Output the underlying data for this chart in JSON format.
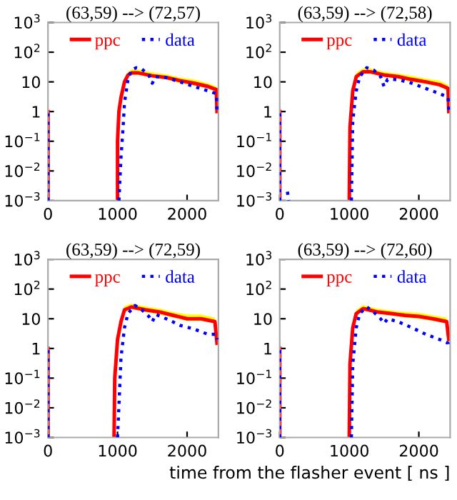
{
  "chart_data": [
    {
      "type": "line",
      "title": "(63,59) --> (72,57)",
      "log": "y",
      "xlim": [
        0,
        2450
      ],
      "ylim": [
        0.001,
        1000
      ],
      "xticks": [
        0,
        1000,
        2000
      ],
      "yticks": [
        {
          "value": 0.001,
          "label": "10$^{−3}$"
        },
        {
          "value": 0.01,
          "label": "10$^{−2}$"
        },
        {
          "value": 0.1,
          "label": "10$^{−1}$"
        },
        1,
        10,
        {
          "value": 100,
          "label": "10$^{2}$"
        },
        {
          "value": 1000,
          "label": "10$^{3}$"
        }
      ],
      "legend": "top",
      "grid": false,
      "series": [
        {
          "name": "ppc",
          "color": "#ff0000",
          "line_style": "solid",
          "x": [
            0,
            0,
            20,
            1000,
            1000,
            1020,
            1050,
            1100,
            1150,
            1200,
            1300,
            1500,
            1700,
            1900,
            2100,
            2300,
            2420,
            2430
          ],
          "values": [
            0.001,
            1,
            null,
            0.001,
            0.1,
            1,
            3,
            10,
            17,
            20,
            20,
            16,
            14,
            11,
            9,
            7,
            5.5,
            1
          ],
          "lower": [
            null,
            null,
            null,
            null,
            null,
            null,
            null,
            8,
            14,
            17,
            17,
            14,
            12,
            9,
            7.5,
            6,
            4.5,
            null
          ],
          "upper": [
            null,
            null,
            null,
            null,
            null,
            null,
            null,
            13,
            22,
            26,
            26,
            21,
            18,
            14,
            12,
            9,
            7,
            null
          ]
        },
        {
          "name": "data",
          "color": "#0000ff",
          "line_style": "dotted",
          "x": [
            0,
            0,
            20,
            1020,
            1050,
            1080,
            1100,
            1150,
            1200,
            1270,
            1350,
            1450,
            1500,
            1550,
            1700,
            1900,
            2100,
            2300,
            2420,
            2430
          ],
          "values": [
            0.001,
            1,
            null,
            0.001,
            0.03,
            0.3,
            2,
            12,
            25,
            30,
            27,
            17,
            9,
            15,
            14,
            10,
            7,
            5,
            4,
            1
          ]
        }
      ]
    },
    {
      "type": "line",
      "title": "(63,59) --> (72,58)",
      "log": "y",
      "xlim": [
        0,
        2450
      ],
      "ylim": [
        0.001,
        1000
      ],
      "xticks": [
        0,
        1000,
        2000
      ],
      "yticks": [
        {
          "value": 0.001,
          "label": "10$^{−3}$"
        },
        {
          "value": 0.01,
          "label": "10$^{−2}$"
        },
        {
          "value": 0.1,
          "label": "10$^{−1}$"
        },
        1,
        10,
        {
          "value": 100,
          "label": "10$^{2}$"
        },
        {
          "value": 1000,
          "label": "10$^{3}$"
        }
      ],
      "legend": "top",
      "grid": false,
      "series": [
        {
          "name": "ppc",
          "color": "#ff0000",
          "line_style": "solid",
          "x": [
            0,
            0,
            20,
            1000,
            1010,
            1050,
            1100,
            1200,
            1300,
            1500,
            1700,
            1900,
            2100,
            2300,
            2420,
            2430
          ],
          "values": [
            0.001,
            1,
            null,
            0.001,
            0.3,
            5,
            15,
            22,
            22,
            17,
            15,
            12,
            10,
            8,
            6,
            1
          ],
          "lower": [
            null,
            null,
            null,
            null,
            null,
            4,
            13,
            19,
            19,
            15,
            13,
            10,
            8.5,
            7,
            5,
            null
          ],
          "upper": [
            null,
            null,
            null,
            null,
            null,
            7,
            20,
            29,
            29,
            22,
            19,
            16,
            13,
            11,
            8,
            null
          ]
        },
        {
          "name": "data",
          "color": "#0000ff",
          "line_style": "dotted",
          "x": [
            0,
            0,
            20,
            110,
            130,
            140,
            1030,
            1050,
            1100,
            1150,
            1250,
            1350,
            1450,
            1500,
            1550,
            1700,
            1900,
            2100,
            2300,
            2420,
            2430
          ],
          "values": [
            0.001,
            1,
            null,
            0.002,
            0.001,
            null,
            0.001,
            0.5,
            5,
            15,
            30,
            25,
            15,
            7,
            12,
            12,
            9,
            6,
            4,
            3,
            1
          ]
        }
      ]
    },
    {
      "type": "line",
      "title": "(63,59) --> (72,59)",
      "log": "y",
      "xlim": [
        0,
        2450
      ],
      "ylim": [
        0.001,
        1000
      ],
      "xticks": [
        0,
        1000,
        2000
      ],
      "yticks": [
        {
          "value": 0.001,
          "label": "10$^{−3}$"
        },
        {
          "value": 0.01,
          "label": "10$^{−2}$"
        },
        {
          "value": 0.1,
          "label": "10$^{−1}$"
        },
        1,
        10,
        {
          "value": 100,
          "label": "10$^{2}$"
        },
        {
          "value": 1000,
          "label": "10$^{3}$"
        }
      ],
      "legend": "top",
      "grid": false,
      "series": [
        {
          "name": "ppc",
          "color": "#ff0000",
          "line_style": "solid",
          "x": [
            0,
            0,
            20,
            950,
            960,
            1000,
            1050,
            1100,
            1200,
            1400,
            1600,
            1800,
            2000,
            2200,
            2400,
            2430
          ],
          "values": [
            0.001,
            1,
            null,
            0.001,
            0.1,
            2,
            8,
            20,
            25,
            20,
            17,
            13,
            10,
            10,
            8,
            1.5
          ],
          "lower": [
            null,
            null,
            null,
            null,
            null,
            null,
            7,
            17,
            21,
            17,
            14,
            11,
            8.5,
            8.5,
            7,
            null
          ],
          "upper": [
            null,
            null,
            null,
            null,
            null,
            null,
            11,
            27,
            32,
            26,
            22,
            17,
            14,
            14,
            11,
            null
          ]
        },
        {
          "name": "data",
          "color": "#0000ff",
          "line_style": "dotted",
          "x": [
            0,
            0,
            20,
            1000,
            1050,
            1100,
            1150,
            1250,
            1350,
            1450,
            1500,
            1550,
            1700,
            1900,
            2100,
            2300,
            2420,
            2430
          ],
          "values": [
            0.001,
            1,
            null,
            0.001,
            0.5,
            5,
            15,
            28,
            20,
            12,
            8,
            14,
            10,
            6,
            4.5,
            3,
            3,
            2
          ]
        }
      ]
    },
    {
      "type": "line",
      "title": "(63,59) --> (72,60)",
      "xlabel": "time from the flasher event [ ns ]",
      "log": "y",
      "xlim": [
        0,
        2450
      ],
      "ylim": [
        0.001,
        1000
      ],
      "xticks": [
        0,
        1000,
        2000
      ],
      "yticks": [
        {
          "value": 0.001,
          "label": "10$^{−3}$"
        },
        {
          "value": 0.01,
          "label": "10$^{−2}$"
        },
        {
          "value": 0.1,
          "label": "10$^{−1}$"
        },
        1,
        10,
        {
          "value": 100,
          "label": "10$^{2}$"
        },
        {
          "value": 1000,
          "label": "10$^{3}$"
        }
      ],
      "legend": "top",
      "grid": false,
      "series": [
        {
          "name": "ppc",
          "color": "#ff0000",
          "line_style": "solid",
          "x": [
            0,
            0,
            20,
            1000,
            1010,
            1050,
            1100,
            1200,
            1400,
            1600,
            1800,
            2000,
            2200,
            2400,
            2430
          ],
          "values": [
            0.001,
            1,
            null,
            0.001,
            0.3,
            5,
            15,
            22,
            17,
            15,
            13,
            12,
            10,
            8,
            2
          ],
          "lower": [
            null,
            null,
            null,
            null,
            null,
            4,
            13,
            19,
            15,
            13,
            11,
            10,
            8.5,
            7,
            null
          ],
          "upper": [
            null,
            null,
            null,
            null,
            null,
            7,
            20,
            29,
            22,
            19,
            17,
            16,
            13,
            11,
            null
          ]
        },
        {
          "name": "data",
          "color": "#0000ff",
          "line_style": "dotted",
          "x": [
            0,
            0,
            20,
            1030,
            1050,
            1100,
            1150,
            1250,
            1350,
            1450,
            1500,
            1550,
            1700,
            1900,
            2100,
            2300,
            2420,
            2430
          ],
          "values": [
            0.001,
            1,
            null,
            0.001,
            0.3,
            5,
            15,
            25,
            17,
            10,
            7,
            10,
            8,
            5,
            3,
            2,
            1.5,
            1
          ]
        }
      ]
    }
  ]
}
